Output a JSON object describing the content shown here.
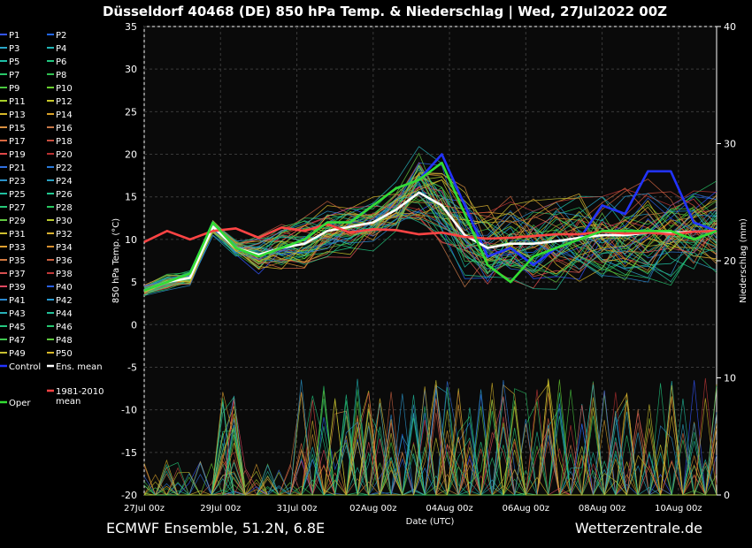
{
  "chart_data": {
    "type": "line",
    "title": "Düsseldorf 40468 (DE)  850 hPa Temp. & Niederschlag | Wed, 27Jul2022 00Z",
    "xlabel": "Date (UTC)",
    "ylabel": "850 hPa Temp. (°C)",
    "y2label": "Niederschlag (mm)",
    "ylim": [
      -20,
      35
    ],
    "y2lim": [
      0,
      40
    ],
    "yticks": [
      -20,
      -15,
      -10,
      -5,
      0,
      5,
      10,
      15,
      20,
      25,
      30,
      35
    ],
    "y2ticks": [
      0,
      10,
      20,
      30,
      40
    ],
    "xlim_days": [
      0,
      15
    ],
    "xticks": [
      {
        "label": "27Jul 00z",
        "day": 0
      },
      {
        "label": "29Jul 00z",
        "day": 2
      },
      {
        "label": "31Jul 00z",
        "day": 4
      },
      {
        "label": "02Aug 00z",
        "day": 6
      },
      {
        "label": "04Aug 00z",
        "day": 8
      },
      {
        "label": "06Aug 00z",
        "day": 10
      },
      {
        "label": "08Aug 00z",
        "day": 12
      },
      {
        "label": "10Aug 00z",
        "day": 14
      }
    ],
    "grid": true,
    "legend_position": "left",
    "series": [
      {
        "name": "Control",
        "color": "#2233ff",
        "temp": [
          4,
          5,
          6,
          12,
          9,
          8,
          9,
          10,
          12,
          12,
          14,
          16,
          17,
          20,
          14,
          8,
          9,
          7,
          9,
          10,
          14,
          13,
          18,
          18,
          12,
          11
        ]
      },
      {
        "name": "Ens. mean",
        "color": "#ffffff",
        "temp": [
          4,
          5,
          5.5,
          11.5,
          9,
          8.2,
          9,
          9.5,
          11,
          11.5,
          12,
          13.5,
          15.5,
          14,
          10.5,
          9,
          9.5,
          9.5,
          9.8,
          10.2,
          10.5,
          10.5,
          10.8,
          10.8,
          10.9,
          11
        ]
      },
      {
        "name": "1981-2010 mean",
        "color": "#ff4444",
        "temp": [
          9.7,
          11,
          10,
          11,
          11.3,
          10.2,
          11.4,
          11,
          11.8,
          10.8,
          11.2,
          11.1,
          10.6,
          10.8,
          10.3,
          10.1,
          10.2,
          10.4,
          10.6,
          10.6,
          10.9,
          10.7,
          10.8,
          10.6,
          10.9,
          11
        ]
      },
      {
        "name": "Oper",
        "color": "#33dd33",
        "temp": [
          4,
          5,
          6,
          12,
          9,
          8,
          9,
          10,
          12,
          12,
          14,
          16,
          17,
          19,
          13,
          7,
          5,
          8,
          9,
          10,
          11,
          11,
          11,
          11,
          10,
          11
        ]
      }
    ],
    "members": [
      {
        "name": "P1",
        "color": "#3355ff"
      },
      {
        "name": "P2",
        "color": "#2266ee"
      },
      {
        "name": "P3",
        "color": "#2aa6c8"
      },
      {
        "name": "P4",
        "color": "#22b6b6"
      },
      {
        "name": "P5",
        "color": "#1ec0a8"
      },
      {
        "name": "P6",
        "color": "#20c880"
      },
      {
        "name": "P7",
        "color": "#28c868"
      },
      {
        "name": "P8",
        "color": "#30c050"
      },
      {
        "name": "P9",
        "color": "#4ac840"
      },
      {
        "name": "P10",
        "color": "#6ad030"
      },
      {
        "name": "P11",
        "color": "#a8d028"
      },
      {
        "name": "P12",
        "color": "#c8c828"
      },
      {
        "name": "P13",
        "color": "#d8b828"
      },
      {
        "name": "P14",
        "color": "#d8a028"
      },
      {
        "name": "P15",
        "color": "#d89040"
      },
      {
        "name": "P16",
        "color": "#c87848"
      },
      {
        "name": "P17",
        "color": "#d86840"
      },
      {
        "name": "P18",
        "color": "#c85040"
      },
      {
        "name": "P19",
        "color": "#e04848"
      },
      {
        "name": "P20",
        "color": "#b83030"
      },
      {
        "name": "P21",
        "color": "#3070e0"
      },
      {
        "name": "P22",
        "color": "#2a7ad8"
      },
      {
        "name": "P23",
        "color": "#2a90c8"
      },
      {
        "name": "P24",
        "color": "#2aa0c0"
      },
      {
        "name": "P25",
        "color": "#20c0a0"
      },
      {
        "name": "P26",
        "color": "#22c890"
      },
      {
        "name": "P27",
        "color": "#26c878"
      },
      {
        "name": "P28",
        "color": "#28c860"
      },
      {
        "name": "P29",
        "color": "#60c840"
      },
      {
        "name": "P30",
        "color": "#b8c830"
      },
      {
        "name": "P31",
        "color": "#d0c030"
      },
      {
        "name": "P32",
        "color": "#d8b030"
      },
      {
        "name": "P33",
        "color": "#e0a030"
      },
      {
        "name": "P34",
        "color": "#d89030"
      },
      {
        "name": "P35",
        "color": "#d07840"
      },
      {
        "name": "P36",
        "color": "#c86040"
      },
      {
        "name": "P37",
        "color": "#d85050"
      },
      {
        "name": "P38",
        "color": "#c03838"
      },
      {
        "name": "P39",
        "color": "#e04860"
      },
      {
        "name": "P40",
        "color": "#2a60e0"
      },
      {
        "name": "P41",
        "color": "#2a88d0"
      },
      {
        "name": "P42",
        "color": "#2a9ad0"
      },
      {
        "name": "P43",
        "color": "#28b0b8"
      },
      {
        "name": "P44",
        "color": "#22c098"
      },
      {
        "name": "P45",
        "color": "#24c880"
      },
      {
        "name": "P46",
        "color": "#26c870"
      },
      {
        "name": "P47",
        "color": "#40c850"
      },
      {
        "name": "P48",
        "color": "#60c840"
      },
      {
        "name": "P49",
        "color": "#c8c030"
      },
      {
        "name": "P50",
        "color": "#d8b828"
      }
    ],
    "annotations": [
      "ECMWF Ensemble, 51.2N, 6.8E",
      "Wetterzentrale.de"
    ]
  }
}
